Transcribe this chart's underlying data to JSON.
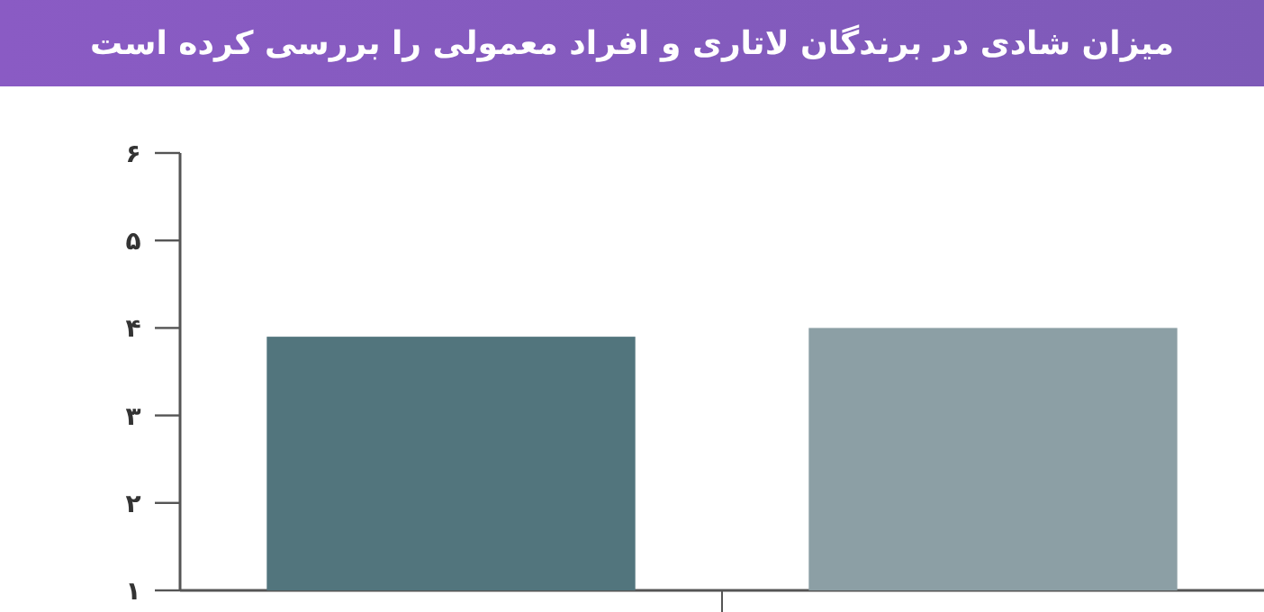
{
  "chart_data": {
    "type": "bar",
    "title": "میزان شادی در برندگان لاتاری و افراد معمولی را بررسی کرده است",
    "categories": [
      null,
      null
    ],
    "values": [
      3.9,
      4.0
    ],
    "colors": [
      "#52757d",
      "#8c9fa5"
    ],
    "ylim": [
      1,
      6
    ],
    "yticks": [
      {
        "value": 1,
        "label": "۱"
      },
      {
        "value": 2,
        "label": "۲"
      },
      {
        "value": 3,
        "label": "۳"
      },
      {
        "value": 4,
        "label": "۴"
      },
      {
        "value": 5,
        "label": "۵"
      },
      {
        "value": 6,
        "label": "۶"
      }
    ],
    "grid": false
  }
}
